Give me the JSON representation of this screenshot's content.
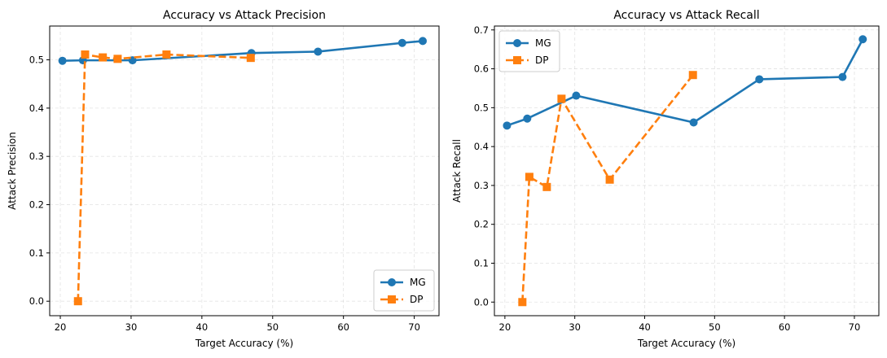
{
  "chart_data": [
    {
      "type": "line",
      "title": "Accuracy vs Attack Precision",
      "xlabel": "Target Accuracy (%)",
      "ylabel": "Attack Precision",
      "xlim": [
        18.5,
        73.5
      ],
      "ylim": [
        -0.03,
        0.57
      ],
      "xticks": [
        20,
        30,
        40,
        50,
        60,
        70
      ],
      "yticks": [
        0.0,
        0.1,
        0.2,
        0.3,
        0.4,
        0.5
      ],
      "ytick_labels": [
        "0.0",
        "0.1",
        "0.2",
        "0.3",
        "0.4",
        "0.5"
      ],
      "grid": true,
      "legend_position": "lower-right",
      "series": [
        {
          "name": "MG",
          "color": "#1f77b4",
          "marker": "circle",
          "linestyle": "solid",
          "x": [
            20.3,
            23.2,
            30.2,
            47.0,
            56.4,
            68.3,
            71.2
          ],
          "y": [
            0.498,
            0.499,
            0.499,
            0.514,
            0.517,
            0.535,
            0.539
          ]
        },
        {
          "name": "DP",
          "color": "#ff7f0e",
          "marker": "square",
          "linestyle": "dashed",
          "x": [
            22.5,
            23.5,
            26.0,
            28.1,
            35.0,
            46.9
          ],
          "y": [
            0.0,
            0.511,
            0.505,
            0.502,
            0.511,
            0.504
          ]
        }
      ]
    },
    {
      "type": "line",
      "title": "Accuracy vs Attack Recall",
      "xlabel": "Target Accuracy (%)",
      "ylabel": "Attack Recall",
      "xlim": [
        18.5,
        73.5
      ],
      "ylim": [
        -0.035,
        0.71
      ],
      "xticks": [
        20,
        30,
        40,
        50,
        60,
        70
      ],
      "yticks": [
        0.0,
        0.1,
        0.2,
        0.3,
        0.4,
        0.5,
        0.6,
        0.7
      ],
      "ytick_labels": [
        "0.0",
        "0.1",
        "0.2",
        "0.3",
        "0.4",
        "0.5",
        "0.6",
        "0.7"
      ],
      "grid": true,
      "legend_position": "upper-left",
      "series": [
        {
          "name": "MG",
          "color": "#1f77b4",
          "marker": "circle",
          "linestyle": "solid",
          "x": [
            20.3,
            23.2,
            30.2,
            47.0,
            56.4,
            68.3,
            71.2
          ],
          "y": [
            0.454,
            0.472,
            0.531,
            0.462,
            0.573,
            0.579,
            0.676
          ]
        },
        {
          "name": "DP",
          "color": "#ff7f0e",
          "marker": "square",
          "linestyle": "dashed",
          "x": [
            22.5,
            23.5,
            26.0,
            28.1,
            35.0,
            46.9
          ],
          "y": [
            0.0,
            0.322,
            0.296,
            0.523,
            0.315,
            0.584
          ]
        }
      ]
    }
  ]
}
